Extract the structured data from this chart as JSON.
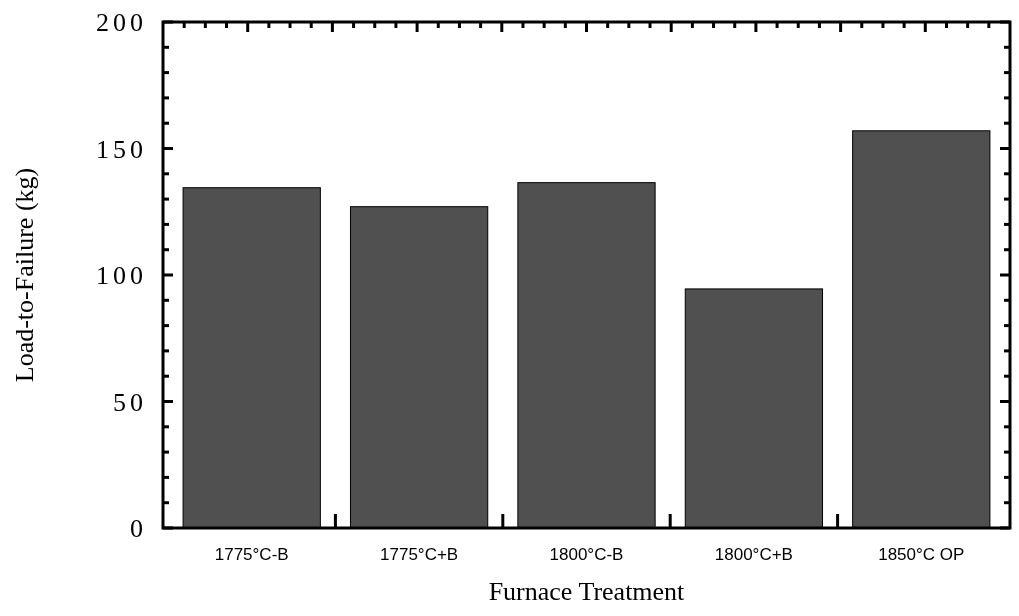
{
  "chart_data": {
    "type": "bar",
    "xlabel": "Furnace Treatment",
    "ylabel": "Load-to-Failure (kg)",
    "categories": [
      "1775°C-B",
      "1775°C+B",
      "1800°C-B",
      "1800°C+B",
      "1850°C OP"
    ],
    "values": [
      134.5,
      127,
      136.5,
      94.5,
      157
    ],
    "color": "#505050",
    "ylim": [
      0,
      200
    ],
    "yticks": [
      0,
      50,
      100,
      150,
      200
    ],
    "grid": false
  }
}
